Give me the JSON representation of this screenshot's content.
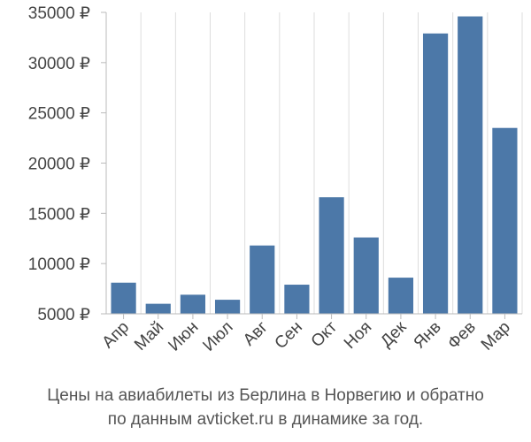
{
  "chart_data": {
    "type": "bar",
    "title": "",
    "xlabel": "",
    "ylabel": "",
    "currency_suffix": " ₽",
    "ylim": [
      5000,
      35000
    ],
    "yticks": [
      5000,
      10000,
      15000,
      20000,
      25000,
      30000,
      35000
    ],
    "ytick_labels": [
      "5000 ₽",
      "10000 ₽",
      "15000 ₽",
      "20000 ₽",
      "25000 ₽",
      "30000 ₽",
      "35000 ₽"
    ],
    "categories": [
      "Апр",
      "Май",
      "Июн",
      "Июл",
      "Авг",
      "Сен",
      "Окт",
      "Ноя",
      "Дек",
      "Янв",
      "Фев",
      "Мар"
    ],
    "values": [
      8100,
      6000,
      6900,
      6400,
      11800,
      7900,
      16600,
      12600,
      8600,
      32900,
      34600,
      23500
    ],
    "bar_color": "#4c78a8",
    "grid": true,
    "grid_axis": "vertical",
    "grid_color": "#dddddd",
    "axis_color": "#bbbbbb"
  },
  "caption": {
    "line1": "Цены на авиабилеты из Берлина в Норвегию и обратно",
    "line2": "по данным avticket.ru в динамике за год."
  }
}
